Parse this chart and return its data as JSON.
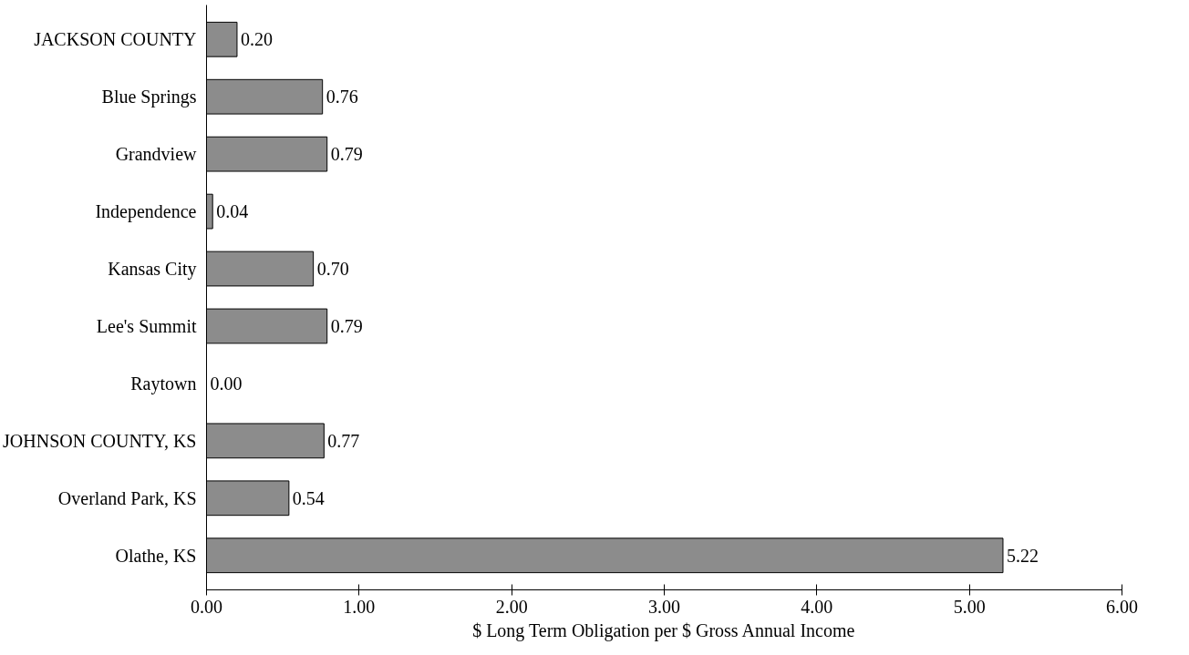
{
  "chart_data": {
    "type": "bar",
    "orientation": "horizontal",
    "categories": [
      "JACKSON COUNTY",
      "Blue Springs",
      "Grandview",
      "Independence",
      "Kansas City",
      "Lee's Summit",
      "Raytown",
      "JOHNSON COUNTY, KS",
      "Overland Park, KS",
      "Olathe, KS"
    ],
    "values": [
      0.2,
      0.76,
      0.79,
      0.04,
      0.7,
      0.79,
      0.0,
      0.77,
      0.54,
      5.22
    ],
    "value_labels": [
      "0.20",
      "0.76",
      "0.79",
      "0.04",
      "0.70",
      "0.79",
      "0.00",
      "0.77",
      "0.54",
      "5.22"
    ],
    "color": "#8c8c8c",
    "xlabel": "$ Long Term Obligation per $ Gross Annual Income",
    "xlim": [
      0,
      6
    ],
    "xticks": [
      {
        "value": 0,
        "label": "0.00"
      },
      {
        "value": 1,
        "label": "1.00"
      },
      {
        "value": 2,
        "label": "2.00"
      },
      {
        "value": 3,
        "label": "3.00"
      },
      {
        "value": 4,
        "label": "4.00"
      },
      {
        "value": 5,
        "label": "5.00"
      },
      {
        "value": 6,
        "label": "6.00"
      }
    ],
    "grid": false
  }
}
